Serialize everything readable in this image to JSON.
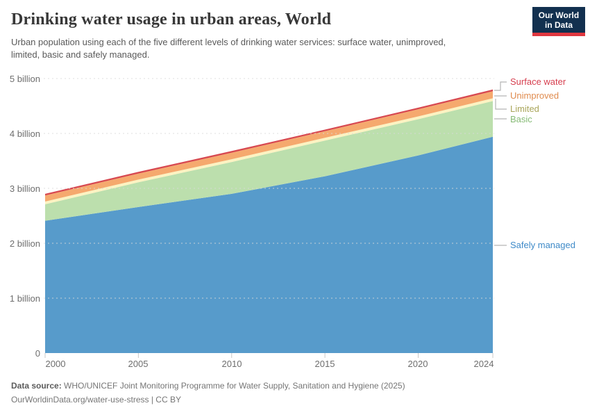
{
  "header": {
    "title": "Drinking water usage in urban areas, World",
    "subtitle_lines": [
      "Urban population using each of the five different levels of drinking water services: surface water, unimproved,",
      "limited, basic and safely managed."
    ],
    "logo": {
      "line1": "Our World",
      "line2": "in Data",
      "bg_color": "#12304f",
      "accent_color": "#e0373f"
    }
  },
  "chart_data": {
    "type": "area",
    "stacked": true,
    "title": "Drinking water usage in urban areas, World",
    "x": [
      2000,
      2005,
      2010,
      2015,
      2020,
      2024
    ],
    "series": [
      {
        "name": "Safely managed",
        "color": "#579bcb",
        "label_color": "#3e8ac8",
        "values": [
          2.41,
          2.66,
          2.9,
          3.22,
          3.6,
          3.94
        ]
      },
      {
        "name": "Basic",
        "color": "#bcdfad",
        "label_color": "#86bb76",
        "values": [
          0.3,
          0.45,
          0.58,
          0.65,
          0.66,
          0.65
        ]
      },
      {
        "name": "Limited",
        "color": "#fcf3c2",
        "label_color": "#aaa65b",
        "values": [
          0.05,
          0.05,
          0.05,
          0.05,
          0.05,
          0.05
        ]
      },
      {
        "name": "Unimproved",
        "color": "#f5a96e",
        "label_color": "#e08b4e",
        "values": [
          0.11,
          0.11,
          0.12,
          0.12,
          0.13,
          0.13
        ]
      },
      {
        "name": "Surface water",
        "color": "#d7484f",
        "label_color": "#d63e4e",
        "values": [
          0.03,
          0.03,
          0.03,
          0.03,
          0.03,
          0.03
        ]
      }
    ],
    "ylim": [
      0,
      5
    ],
    "yticks": {
      "values": [
        0,
        1,
        2,
        3,
        4,
        5
      ],
      "labels": [
        "0",
        "1 billion",
        "2 billion",
        "3 billion",
        "4 billion",
        "5 billion"
      ]
    },
    "xticks": {
      "values": [
        2000,
        2005,
        2010,
        2015,
        2020,
        2024
      ],
      "labels": [
        "2000",
        "2005",
        "2010",
        "2015",
        "2020",
        "2024"
      ]
    },
    "grid": "horizontal-dashed",
    "legend_position": "right"
  },
  "footer": {
    "data_source_label": "Data source:",
    "data_source_text": "WHO/UNICEF Joint Monitoring Programme for Water Supply, Sanitation and Hygiene (2025)",
    "citation": "OurWorldinData.org/water-use-stress | CC BY"
  }
}
